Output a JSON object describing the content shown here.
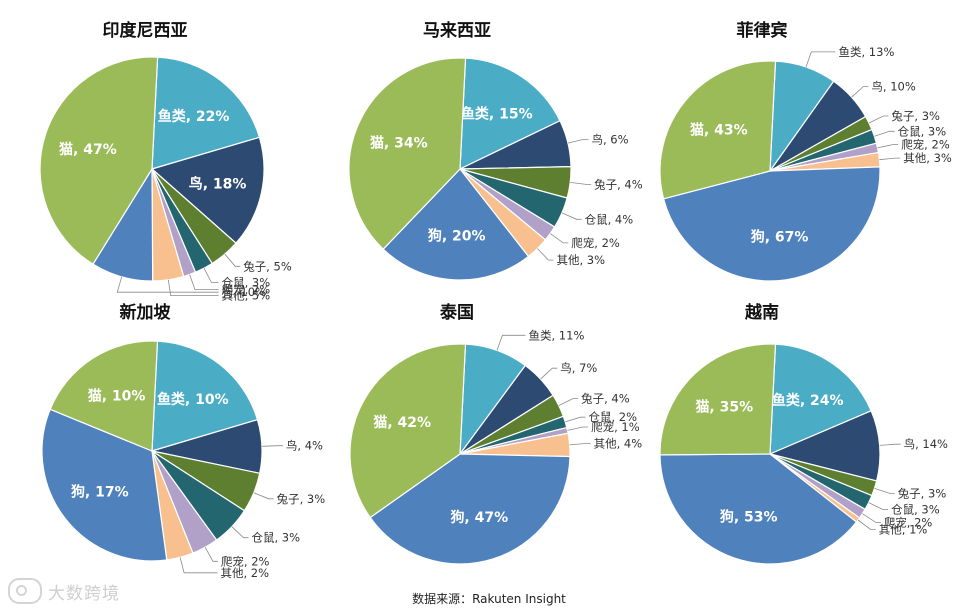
{
  "source": "数据来源：Rakuten Insight",
  "watermark": "大数跨境",
  "colors": {
    "鱼类": "#4bacc6",
    "鸟": "#2c4a72",
    "兔子": "#5e7e30",
    "仓鼠": "#23666f",
    "爬宠": "#b1a0c7",
    "其他": "#f9c08f",
    "狗": "#4f81bd",
    "猫": "#9bbb59"
  },
  "chart_data": [
    {
      "type": "pie",
      "title": "印度尼西亚",
      "slices": [
        {
          "name": "鱼类",
          "value": 22,
          "label": "鱼类, 22%"
        },
        {
          "name": "鸟",
          "value": 18,
          "label": "鸟, 18%"
        },
        {
          "name": "兔子",
          "value": 5,
          "label": "兔子, 5%"
        },
        {
          "name": "仓鼠",
          "value": 3,
          "label": "仓鼠, 3%"
        },
        {
          "name": "爬宠",
          "value": 2,
          "label": "爬宠, 2%"
        },
        {
          "name": "其他",
          "value": 5,
          "label": "其他, 5%"
        },
        {
          "name": "狗",
          "value": 10,
          "label": "狗, 10%"
        },
        {
          "name": "猫",
          "value": 47,
          "label": "猫, 47%"
        }
      ]
    },
    {
      "type": "pie",
      "title": "马来西亚",
      "slices": [
        {
          "name": "鱼类",
          "value": 15,
          "label": "鱼类, 15%"
        },
        {
          "name": "鸟",
          "value": 6,
          "label": "鸟, 6%"
        },
        {
          "name": "兔子",
          "value": 4,
          "label": "兔子, 4%"
        },
        {
          "name": "仓鼠",
          "value": 4,
          "label": "仓鼠, 4%"
        },
        {
          "name": "爬宠",
          "value": 2,
          "label": "爬宠, 2%"
        },
        {
          "name": "其他",
          "value": 3,
          "label": "其他, 3%"
        },
        {
          "name": "狗",
          "value": 20,
          "label": "狗, 20%"
        },
        {
          "name": "猫",
          "value": 34,
          "label": "猫, 34%"
        }
      ]
    },
    {
      "type": "pie",
      "title": "菲律宾",
      "slices": [
        {
          "name": "鱼类",
          "value": 13,
          "label": "鱼类, 13%"
        },
        {
          "name": "鸟",
          "value": 10,
          "label": "鸟, 10%"
        },
        {
          "name": "兔子",
          "value": 3,
          "label": "兔子, 3%"
        },
        {
          "name": "仓鼠",
          "value": 3,
          "label": "仓鼠, 3%"
        },
        {
          "name": "爬宠",
          "value": 2,
          "label": "爬宠, 2%"
        },
        {
          "name": "其他",
          "value": 3,
          "label": "其他, 3%"
        },
        {
          "name": "狗",
          "value": 67,
          "label": "狗, 67%"
        },
        {
          "name": "猫",
          "value": 43,
          "label": "猫, 43%"
        }
      ]
    },
    {
      "type": "pie",
      "title": "新加坡",
      "slices": [
        {
          "name": "鱼类",
          "value": 10,
          "label": "鱼类, 10%"
        },
        {
          "name": "鸟",
          "value": 4,
          "label": "鸟, 4%"
        },
        {
          "name": "兔子",
          "value": 3,
          "label": "兔子, 3%"
        },
        {
          "name": "仓鼠",
          "value": 3,
          "label": "仓鼠, 3%"
        },
        {
          "name": "爬宠",
          "value": 2,
          "label": "爬宠, 2%"
        },
        {
          "name": "其他",
          "value": 2,
          "label": "其他, 2%"
        },
        {
          "name": "狗",
          "value": 17,
          "label": "狗, 17%"
        },
        {
          "name": "猫",
          "value": 10,
          "label": "猫, 10%"
        }
      ]
    },
    {
      "type": "pie",
      "title": "泰国",
      "slices": [
        {
          "name": "鱼类",
          "value": 11,
          "label": "鱼类, 11%"
        },
        {
          "name": "鸟",
          "value": 7,
          "label": "鸟, 7%"
        },
        {
          "name": "兔子",
          "value": 4,
          "label": "兔子, 4%"
        },
        {
          "name": "仓鼠",
          "value": 2,
          "label": "仓鼠, 2%"
        },
        {
          "name": "爬宠",
          "value": 1,
          "label": "爬宠, 1%"
        },
        {
          "name": "其他",
          "value": 4,
          "label": "其他, 4%"
        },
        {
          "name": "狗",
          "value": 47,
          "label": "狗, 47%"
        },
        {
          "name": "猫",
          "value": 42,
          "label": "猫, 42%"
        }
      ]
    },
    {
      "type": "pie",
      "title": "越南",
      "slices": [
        {
          "name": "鱼类",
          "value": 24,
          "label": "鱼类, 24%"
        },
        {
          "name": "鸟",
          "value": 14,
          "label": "鸟, 14%"
        },
        {
          "name": "兔子",
          "value": 3,
          "label": "兔子, 3%"
        },
        {
          "name": "仓鼠",
          "value": 3,
          "label": "仓鼠, 3%"
        },
        {
          "name": "爬宠",
          "value": 2,
          "label": "爬宠, 2%"
        },
        {
          "name": "其他",
          "value": 1,
          "label": "其他, 1%"
        },
        {
          "name": "狗",
          "value": 53,
          "label": "狗, 53%"
        },
        {
          "name": "猫",
          "value": 35,
          "label": "猫, 35%"
        }
      ]
    }
  ]
}
